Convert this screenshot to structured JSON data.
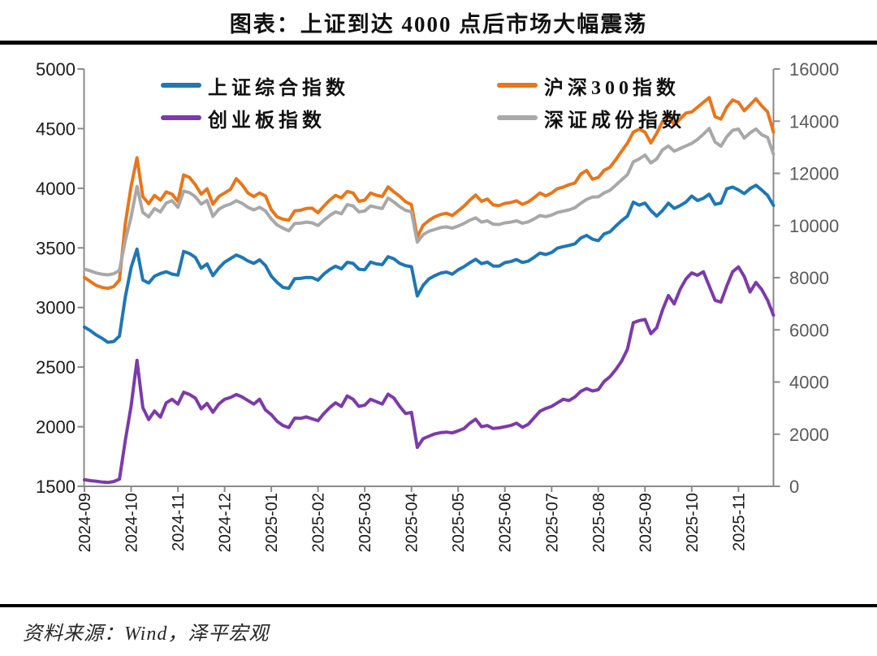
{
  "header": {
    "title": "图表：上证到达 4000 点后市场大幅震荡"
  },
  "footer": {
    "source": "资料来源：Wind，泽平宏观"
  },
  "chart_data": {
    "type": "line",
    "title": "图表：上证到达 4000 点后市场大幅震荡",
    "grid": false,
    "legend_position": "top-inside",
    "x_axis": {
      "tick_labels": [
        "2024-09",
        "2024-10",
        "2024-11",
        "2024-12",
        "2025-01",
        "2025-02",
        "2025-03",
        "2025-04",
        "2025-05",
        "2025-06",
        "2025-07",
        "2025-08",
        "2025-09",
        "2025-10",
        "2025-11"
      ],
      "points_per_month": 8,
      "label_color": "#1a1a1a"
    },
    "y_axis_left": {
      "min": 1500,
      "max": 5000,
      "step": 500,
      "tick_labels": [
        "5000",
        "4500",
        "4000",
        "3500",
        "3000",
        "2500",
        "2000",
        "1500"
      ],
      "label_color": "#1a1a1a"
    },
    "y_axis_right": {
      "min": 0,
      "max": 16000,
      "step": 2000,
      "tick_labels": [
        "16000",
        "14000",
        "12000",
        "10000",
        "8000",
        "6000",
        "4000",
        "2000",
        "0"
      ],
      "label_color": "#595959"
    },
    "axis_line_color": "#8a8a8a",
    "series": [
      {
        "name": "上证综合指数",
        "axis": "left",
        "color": "#1F77B4",
        "values": [
          2835,
          2806,
          2770,
          2742,
          2708,
          2715,
          2760,
          3088,
          3336,
          3490,
          3230,
          3205,
          3262,
          3285,
          3300,
          3280,
          3272,
          3470,
          3452,
          3420,
          3330,
          3365,
          3267,
          3330,
          3380,
          3410,
          3440,
          3420,
          3390,
          3370,
          3400,
          3352,
          3263,
          3210,
          3168,
          3161,
          3241,
          3244,
          3252,
          3251,
          3229,
          3280,
          3318,
          3346,
          3324,
          3379,
          3370,
          3321,
          3317,
          3381,
          3366,
          3359,
          3426,
          3408,
          3370,
          3351,
          3342,
          3097,
          3186,
          3240,
          3267,
          3288,
          3297,
          3279,
          3316,
          3342,
          3375,
          3404,
          3367,
          3381,
          3348,
          3347,
          3376,
          3385,
          3402,
          3377,
          3388,
          3420,
          3456,
          3444,
          3461,
          3497,
          3510,
          3520,
          3534,
          3582,
          3605,
          3573,
          3560,
          3617,
          3635,
          3683,
          3728,
          3766,
          3883,
          3858,
          3876,
          3813,
          3766,
          3813,
          3875,
          3831,
          3854,
          3883,
          3934,
          3897,
          3916,
          3950,
          3865,
          3876,
          3995,
          4010,
          3986,
          3955,
          3997,
          4025,
          3985,
          3940,
          3856
        ]
      },
      {
        "name": "沪深300指数",
        "axis": "left",
        "color": "#E8761C",
        "values": [
          3252,
          3218,
          3185,
          3168,
          3160,
          3175,
          3230,
          3703,
          4018,
          4256,
          3930,
          3870,
          3940,
          3900,
          3970,
          3950,
          3890,
          4112,
          4090,
          4030,
          3950,
          3995,
          3866,
          3930,
          3960,
          3990,
          4080,
          4030,
          3960,
          3930,
          3960,
          3935,
          3820,
          3760,
          3740,
          3732,
          3810,
          3815,
          3830,
          3833,
          3795,
          3850,
          3900,
          3940,
          3920,
          3973,
          3960,
          3890,
          3900,
          3960,
          3941,
          3930,
          4011,
          3970,
          3932,
          3887,
          3862,
          3589,
          3690,
          3730,
          3760,
          3780,
          3790,
          3771,
          3810,
          3850,
          3900,
          3943,
          3890,
          3910,
          3860,
          3855,
          3873,
          3880,
          3895,
          3865,
          3885,
          3920,
          3960,
          3936,
          3960,
          3996,
          4010,
          4030,
          4044,
          4119,
          4149,
          4076,
          4090,
          4150,
          4176,
          4240,
          4310,
          4378,
          4470,
          4496,
          4470,
          4380,
          4460,
          4560,
          4620,
          4530,
          4580,
          4630,
          4640,
          4680,
          4720,
          4760,
          4600,
          4580,
          4680,
          4740,
          4720,
          4650,
          4700,
          4750,
          4690,
          4640,
          4470
        ]
      },
      {
        "name": "创业板指数",
        "axis": "left",
        "color": "#7B3BAA",
        "values": [
          1555,
          1548,
          1542,
          1536,
          1532,
          1540,
          1560,
          1885,
          2175,
          2556,
          2160,
          2060,
          2132,
          2080,
          2200,
          2230,
          2190,
          2289,
          2270,
          2240,
          2150,
          2195,
          2121,
          2190,
          2230,
          2245,
          2270,
          2250,
          2220,
          2190,
          2230,
          2141,
          2101,
          2045,
          2010,
          1993,
          2072,
          2070,
          2082,
          2066,
          2050,
          2110,
          2160,
          2200,
          2170,
          2258,
          2230,
          2170,
          2180,
          2230,
          2210,
          2190,
          2273,
          2240,
          2170,
          2110,
          2120,
          1827,
          1900,
          1920,
          1940,
          1950,
          1955,
          1948,
          1965,
          1985,
          2030,
          2063,
          2000,
          2010,
          1985,
          1990,
          2000,
          2010,
          2030,
          1995,
          2020,
          2075,
          2129,
          2153,
          2170,
          2200,
          2230,
          2220,
          2250,
          2296,
          2320,
          2300,
          2310,
          2380,
          2420,
          2480,
          2550,
          2650,
          2872,
          2890,
          2900,
          2780,
          2830,
          2980,
          3100,
          3030,
          3150,
          3238,
          3290,
          3270,
          3300,
          3180,
          3060,
          3045,
          3180,
          3300,
          3340,
          3260,
          3130,
          3210,
          3150,
          3060,
          2935
        ]
      },
      {
        "name": "深证成份指数",
        "axis": "right",
        "color": "#A8A8A8",
        "values": [
          8330,
          8260,
          8180,
          8130,
          8110,
          8150,
          8280,
          9430,
          10336,
          11500,
          10500,
          10330,
          10650,
          10520,
          10860,
          10950,
          10700,
          11320,
          11260,
          11100,
          10820,
          10960,
          10350,
          10620,
          10750,
          10820,
          10950,
          10850,
          10700,
          10600,
          10700,
          10560,
          10250,
          10020,
          9900,
          9795,
          10080,
          10090,
          10130,
          10100,
          10000,
          10200,
          10380,
          10520,
          10450,
          10800,
          10750,
          10520,
          10560,
          10750,
          10700,
          10650,
          11050,
          10900,
          10720,
          10580,
          10520,
          9364,
          9650,
          9780,
          9850,
          9920,
          9950,
          9899,
          9980,
          10080,
          10200,
          10293,
          10130,
          10180,
          10050,
          10040,
          10100,
          10130,
          10180,
          10090,
          10140,
          10250,
          10380,
          10340,
          10400,
          10500,
          10550,
          10600,
          10680,
          10850,
          11000,
          11090,
          11100,
          11250,
          11350,
          11550,
          11750,
          11950,
          12441,
          12550,
          12700,
          12400,
          12550,
          12900,
          13050,
          12850,
          12950,
          13050,
          13150,
          13300,
          13500,
          13720,
          13200,
          13040,
          13400,
          13650,
          13700,
          13350,
          13550,
          13700,
          13480,
          13380,
          12730
        ]
      }
    ]
  }
}
